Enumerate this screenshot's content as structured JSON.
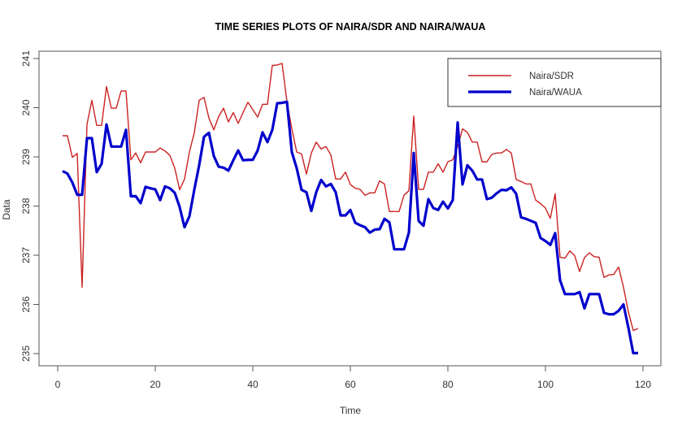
{
  "chart_data": {
    "type": "line",
    "title": "TIME SERIES PLOTS OF NAIRA/SDR AND NAIRA/WAUA",
    "xlabel": "Time",
    "ylabel": "Data",
    "xlim": [
      -2,
      124
    ],
    "ylim": [
      234.7,
      241.15
    ],
    "xticks": [
      0,
      20,
      40,
      60,
      80,
      100,
      120
    ],
    "yticks": [
      235,
      236,
      237,
      238,
      239,
      240,
      241
    ],
    "grid": false,
    "legend_position": "top-right",
    "x": [
      1,
      2,
      3,
      4,
      5,
      6,
      7,
      8,
      9,
      10,
      11,
      12,
      13,
      14,
      15,
      16,
      17,
      18,
      19,
      20,
      21,
      22,
      23,
      24,
      25,
      26,
      27,
      28,
      29,
      30,
      31,
      32,
      33,
      34,
      35,
      36,
      37,
      38,
      39,
      40,
      41,
      42,
      43,
      44,
      45,
      46,
      47,
      48,
      49,
      50,
      51,
      52,
      53,
      54,
      55,
      56,
      57,
      58,
      59,
      60,
      61,
      62,
      63,
      64,
      65,
      66,
      67,
      68,
      69,
      70,
      71,
      72,
      73,
      74,
      75,
      76,
      77,
      78,
      79,
      80,
      81,
      82,
      83,
      84,
      85,
      86,
      87,
      88,
      89,
      90,
      91,
      92,
      93,
      94,
      95,
      96,
      97,
      98,
      99,
      100,
      101,
      102,
      103,
      104,
      105,
      106,
      107,
      108,
      109,
      110,
      111,
      112,
      113,
      114,
      115,
      116,
      117,
      118,
      119
    ],
    "series": [
      {
        "name": "Naira/SDR",
        "color": "#cc2222",
        "line_weight": "thin",
        "values": [
          239.43,
          239.43,
          238.99,
          239.07,
          236.35,
          239.66,
          240.15,
          239.64,
          239.64,
          240.43,
          239.99,
          239.99,
          240.34,
          240.34,
          238.94,
          239.08,
          238.88,
          239.1,
          239.1,
          239.1,
          239.18,
          239.12,
          239.03,
          238.77,
          238.33,
          238.55,
          239.1,
          239.49,
          240.15,
          240.21,
          239.79,
          239.55,
          239.82,
          239.99,
          239.71,
          239.9,
          239.68,
          239.9,
          240.11,
          239.96,
          239.81,
          240.07,
          240.07,
          240.86,
          240.87,
          240.9,
          240.12,
          239.57,
          239.1,
          239.06,
          238.65,
          239.08,
          239.3,
          239.16,
          239.21,
          239.04,
          238.55,
          238.55,
          238.69,
          238.44,
          238.36,
          238.34,
          238.22,
          238.27,
          238.27,
          238.51,
          238.45,
          237.89,
          237.89,
          237.89,
          238.22,
          238.31,
          239.83,
          238.34,
          238.34,
          238.69,
          238.69,
          238.86,
          238.69,
          238.9,
          238.94,
          239.21,
          239.57,
          239.5,
          239.3,
          239.3,
          238.9,
          238.9,
          239.05,
          239.08,
          239.08,
          239.15,
          239.08,
          238.54,
          238.5,
          238.45,
          238.45,
          238.12,
          238.05,
          237.96,
          237.75,
          238.25,
          236.96,
          236.94,
          237.09,
          236.99,
          236.67,
          236.95,
          237.05,
          236.97,
          236.96,
          236.55,
          236.6,
          236.61,
          236.76,
          236.35,
          235.85,
          235.47,
          235.51
        ]
      },
      {
        "name": "Naira/WAUA",
        "color": "#0000cc",
        "line_weight": "thick",
        "values": [
          238.71,
          238.66,
          238.48,
          238.23,
          238.23,
          239.38,
          239.38,
          238.69,
          238.86,
          239.66,
          239.21,
          239.21,
          239.21,
          239.55,
          238.2,
          238.2,
          238.06,
          238.39,
          238.36,
          238.34,
          238.12,
          238.4,
          238.36,
          238.27,
          237.98,
          237.57,
          237.79,
          238.33,
          238.83,
          239.41,
          239.49,
          239.02,
          238.8,
          238.78,
          238.72,
          238.93,
          239.13,
          238.93,
          238.94,
          238.94,
          239.13,
          239.5,
          239.3,
          239.55,
          240.09,
          240.1,
          240.12,
          239.1,
          238.77,
          238.33,
          238.28,
          237.9,
          238.28,
          238.53,
          238.4,
          238.45,
          238.28,
          237.81,
          237.81,
          237.92,
          237.66,
          237.61,
          237.57,
          237.46,
          237.52,
          237.53,
          237.74,
          237.67,
          237.12,
          237.12,
          237.12,
          237.46,
          239.08,
          237.7,
          237.6,
          238.14,
          237.96,
          237.92,
          238.09,
          237.95,
          238.12,
          239.7,
          238.44,
          238.83,
          238.72,
          238.54,
          238.54,
          238.14,
          238.17,
          238.26,
          238.33,
          238.32,
          238.38,
          238.25,
          237.77,
          237.74,
          237.7,
          237.66,
          237.35,
          237.29,
          237.21,
          237.45,
          236.49,
          236.21,
          236.21,
          236.21,
          236.25,
          235.92,
          236.21,
          236.21,
          236.21,
          235.83,
          235.8,
          235.8,
          235.87,
          236.0,
          235.53,
          235.01,
          235.01
        ]
      }
    ]
  }
}
